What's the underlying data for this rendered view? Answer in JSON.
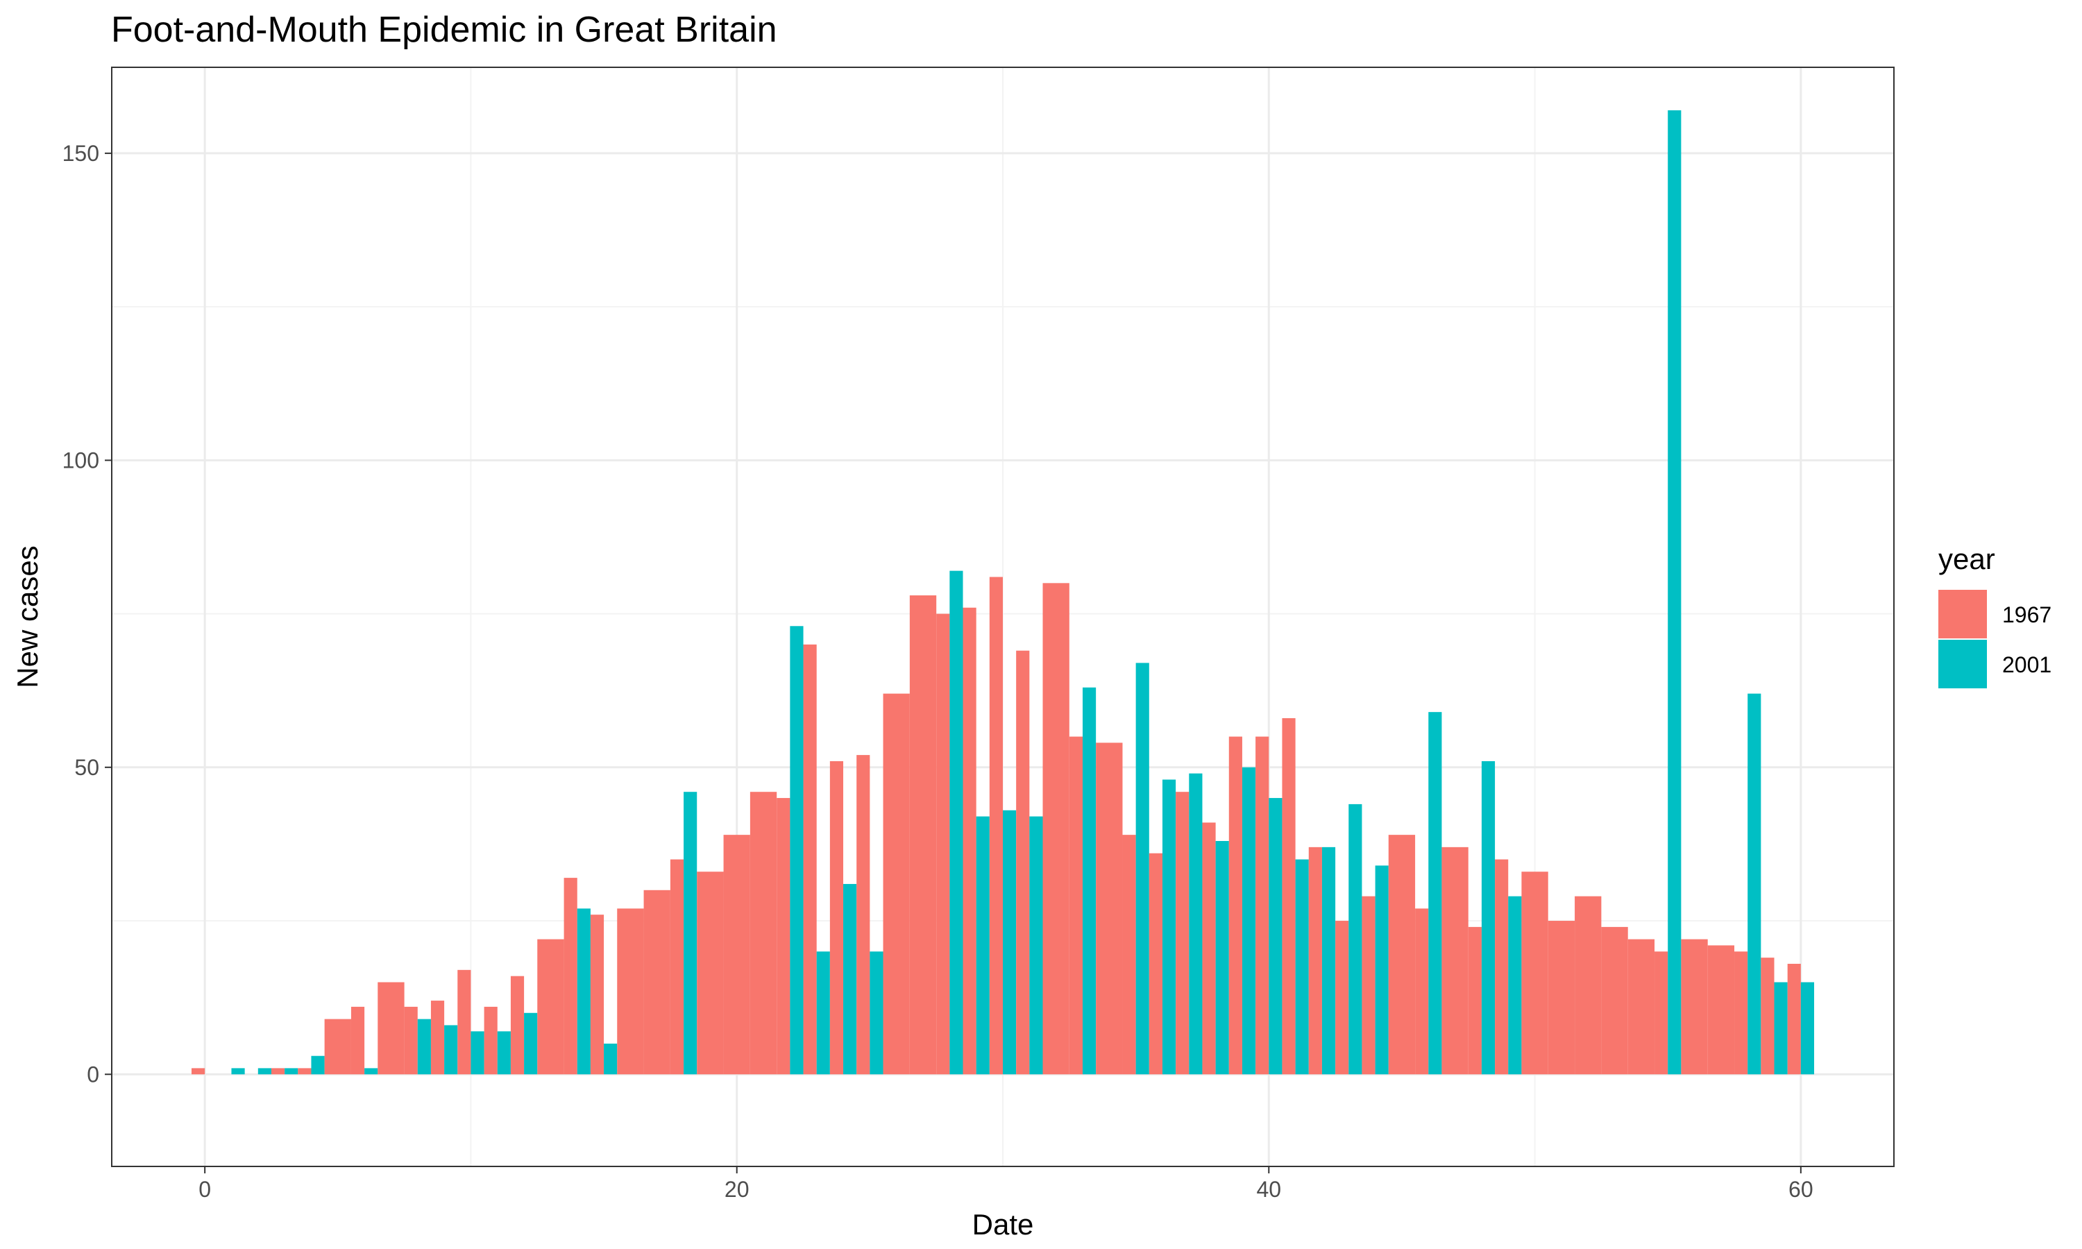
{
  "chart_data": {
    "type": "bar",
    "title": "Foot-and-Mouth Epidemic in Great Britain",
    "xlabel": "Date",
    "ylabel": "New cases",
    "xlim": [
      -3.5,
      63.5
    ],
    "ylim": [
      -15,
      164
    ],
    "x_ticks": [
      0,
      20,
      40,
      60
    ],
    "y_ticks": [
      0,
      50,
      100,
      150
    ],
    "grid": true,
    "legend": {
      "title": "year",
      "position": "right"
    },
    "bar_width": 1.0,
    "series": [
      {
        "name": "1967",
        "color": "#F8766D",
        "x": [
          0,
          1,
          2,
          3,
          4,
          5,
          6,
          7,
          8,
          9,
          10,
          11,
          12,
          13,
          14,
          15,
          16,
          17,
          18,
          19,
          20,
          21,
          22,
          23,
          24,
          25,
          26,
          27,
          28,
          29,
          30,
          31,
          32,
          33,
          34,
          35,
          36,
          37,
          38,
          39,
          40,
          41,
          42,
          43,
          44,
          45,
          46,
          47,
          48,
          49,
          50,
          51,
          52,
          53,
          54,
          55,
          56,
          57,
          58,
          59,
          60
        ],
        "values": [
          1,
          0,
          0,
          1,
          1,
          9,
          11,
          15,
          11,
          12,
          17,
          11,
          16,
          22,
          32,
          26,
          27,
          30,
          35,
          33,
          39,
          46,
          45,
          70,
          51,
          52,
          62,
          78,
          75,
          76,
          81,
          69,
          80,
          55,
          54,
          39,
          36,
          46,
          41,
          55,
          55,
          58,
          37,
          25,
          29,
          39,
          27,
          37,
          24,
          35,
          33,
          25,
          29,
          24,
          22,
          20,
          22,
          21,
          20,
          19,
          18
        ]
      },
      {
        "name": "2001",
        "color": "#00BFC4",
        "x": [
          0,
          1,
          2,
          3,
          4,
          6,
          8,
          9,
          10,
          11,
          12,
          14,
          15,
          18,
          22,
          23,
          24,
          25,
          28,
          29,
          30,
          31,
          33,
          35,
          36,
          37,
          38,
          39,
          40,
          41,
          42,
          43,
          44,
          46,
          48,
          49,
          55,
          58,
          59,
          60
        ],
        "values": [
          0,
          1,
          1,
          1,
          3,
          1,
          9,
          8,
          7,
          7,
          10,
          27,
          5,
          46,
          73,
          20,
          31,
          20,
          82,
          42,
          43,
          42,
          63,
          67,
          48,
          49,
          38,
          50,
          45,
          35,
          37,
          44,
          34,
          59,
          51,
          29,
          157,
          62,
          15,
          15
        ]
      }
    ]
  }
}
